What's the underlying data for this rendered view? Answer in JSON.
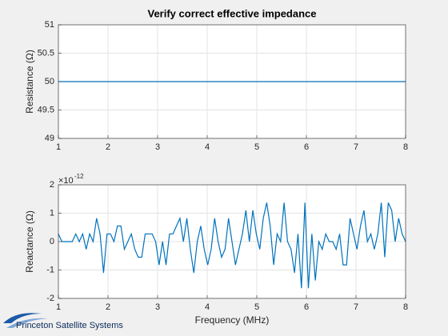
{
  "chart_data": [
    {
      "type": "line",
      "title": "Verify correct effective impedance",
      "y_label": "Resistance (Ω)",
      "x": [
        1,
        8
      ],
      "series": [
        {
          "color": "#0072bd",
          "values": [
            50,
            50
          ]
        }
      ],
      "xlim": [
        1,
        8
      ],
      "xticks": [
        1,
        2,
        3,
        4,
        5,
        6,
        7,
        8
      ],
      "ylim": [
        49,
        51
      ],
      "yticks": [
        49,
        49.5,
        50,
        50.5,
        51
      ],
      "grid": true
    },
    {
      "type": "line",
      "x_label": "Frequency (MHz)",
      "y_label": "Reactance (Ω)",
      "y_exponent": {
        "base": "×10",
        "power": "-12"
      },
      "x": [
        1,
        1.07,
        1.14,
        1.21,
        1.28,
        1.35,
        1.42,
        1.49,
        1.56,
        1.63,
        1.7,
        1.77,
        1.84,
        1.91,
        1.98,
        2.05,
        2.12,
        2.19,
        2.26,
        2.33,
        2.4,
        2.47,
        2.54,
        2.61,
        2.68,
        2.75,
        2.82,
        2.89,
        2.96,
        3.03,
        3.1,
        3.17,
        3.24,
        3.31,
        3.38,
        3.45,
        3.52,
        3.59,
        3.66,
        3.73,
        3.8,
        3.87,
        3.94,
        4.01,
        4.08,
        4.15,
        4.22,
        4.29,
        4.36,
        4.43,
        4.5,
        4.57,
        4.64,
        4.71,
        4.78,
        4.85,
        4.92,
        4.99,
        5.06,
        5.13,
        5.2,
        5.27,
        5.34,
        5.41,
        5.48,
        5.55,
        5.62,
        5.69,
        5.76,
        5.83,
        5.9,
        5.97,
        6.04,
        6.11,
        6.18,
        6.25,
        6.32,
        6.39,
        6.46,
        6.53,
        6.6,
        6.67,
        6.74,
        6.81,
        6.88,
        6.95,
        7.02,
        7.09,
        7.16,
        7.23,
        7.3,
        7.37,
        7.44,
        7.51,
        7.58,
        7.65,
        7.72,
        7.79,
        7.86,
        7.93,
        8
      ],
      "series": [
        {
          "color": "#0072bd",
          "values": [
            0.27,
            0,
            0,
            0,
            0,
            0.27,
            0,
            0.27,
            -0.27,
            0.27,
            0,
            0.82,
            0.27,
            -1.1,
            0.27,
            0.27,
            0,
            0.55,
            0.55,
            -0.27,
            0,
            0.27,
            -0.27,
            -0.55,
            -0.55,
            0.27,
            0.27,
            0.27,
            0,
            -0.82,
            0,
            -0.82,
            0.27,
            0.27,
            0.55,
            0.82,
            0,
            0.82,
            -0.27,
            -1.1,
            0,
            0.55,
            -0.27,
            -0.82,
            -0.27,
            0.82,
            0,
            -0.55,
            -0.27,
            0.82,
            0,
            -0.82,
            -0.27,
            0.27,
            1.1,
            0,
            1.1,
            0.27,
            -0.27,
            0.82,
            1.37,
            0.55,
            -0.82,
            0.27,
            0,
            1.37,
            0,
            -0.27,
            -1.1,
            0.27,
            -1.64,
            1.37,
            -1.64,
            0.27,
            -1.37,
            0,
            -0.27,
            0.27,
            0,
            0,
            -0.27,
            0.27,
            -0.82,
            -0.82,
            0.82,
            0.27,
            -0.27,
            0.55,
            1.1,
            0,
            0.27,
            -0.27,
            0.27,
            1.37,
            -0.55,
            1.37,
            1.1,
            0,
            0.82,
            0.27,
            0
          ]
        }
      ],
      "xlim": [
        1,
        8
      ],
      "xticks": [
        1,
        2,
        3,
        4,
        5,
        6,
        7,
        8
      ],
      "ylim": [
        -2,
        2
      ],
      "yticks": [
        -2,
        -1,
        0,
        1,
        2
      ],
      "grid": true
    }
  ],
  "footer": {
    "logo_text": "Princeton Satellite Systems"
  }
}
